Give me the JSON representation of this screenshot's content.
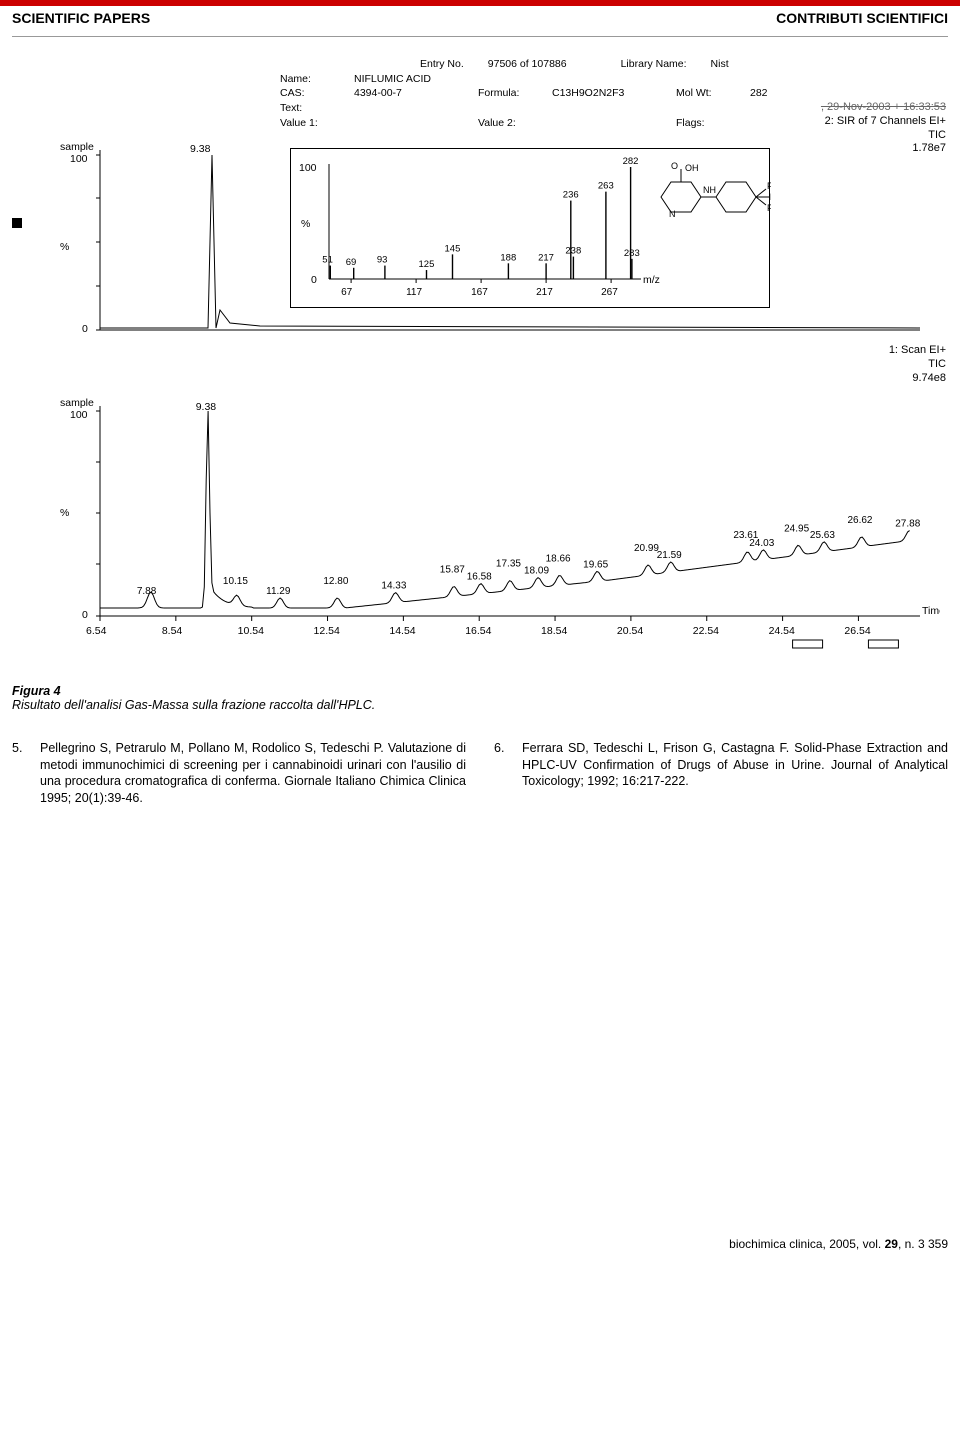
{
  "header": {
    "left": "SCIENTIFIC PAPERS",
    "right": "CONTRIBUTI SCIENTIFICI"
  },
  "figure": {
    "meta": {
      "entry_no_lbl": "Entry No.",
      "entry_no": "97506 of 107886",
      "library_name_lbl": "Library Name:",
      "library_name": "Nist",
      "name_lbl": "Name:",
      "name": "NIFLUMIC ACID",
      "cas_lbl": "CAS:",
      "cas": "4394-00-7",
      "formula_lbl": "Formula:",
      "formula": "C13H9O2N2F3",
      "molwt_lbl": "Mol Wt:",
      "molwt": "282",
      "text_lbl": "Text:",
      "value1_lbl": "Value 1:",
      "value2_lbl": "Value 2:",
      "flags_lbl": "Flags:"
    },
    "stamp": {
      "line1": ", 29-Nov-2003 + 16:33:53",
      "line2": "2: SIR of 7 Channels EI+",
      "line3": "TIC",
      "line4": "1.78e7"
    },
    "top_chart": {
      "y_label_left": "sample",
      "y_ticks": [
        100,
        0
      ],
      "y_mid_label": "%",
      "peak_label": "9.38",
      "peak_x": 0.14,
      "x_range": [
        6.54,
        27.88
      ],
      "second_stamp": {
        "line1": "1: Scan EI+",
        "line2": "TIC",
        "line3": "9.74e8"
      }
    },
    "inset": {
      "y_ticks": [
        100,
        0
      ],
      "y_mid_label": "%",
      "x_label": "m/z",
      "x_ticks": [
        67,
        117,
        167,
        217,
        267
      ],
      "peaks": [
        {
          "mz": 51,
          "h": 0.12,
          "lbl": "51"
        },
        {
          "mz": 69,
          "h": 0.1,
          "lbl": "69"
        },
        {
          "mz": 93,
          "h": 0.12,
          "lbl": "93"
        },
        {
          "mz": 125,
          "h": 0.08,
          "lbl": "125"
        },
        {
          "mz": 145,
          "h": 0.22,
          "lbl": "145"
        },
        {
          "mz": 188,
          "h": 0.14,
          "lbl": "188"
        },
        {
          "mz": 217,
          "h": 0.14,
          "lbl": "217"
        },
        {
          "mz": 236,
          "h": 0.7,
          "lbl": "236"
        },
        {
          "mz": 238,
          "h": 0.2,
          "lbl": "238"
        },
        {
          "mz": 263,
          "h": 0.78,
          "lbl": "263"
        },
        {
          "mz": 282,
          "h": 1.0,
          "lbl": "282"
        },
        {
          "mz": 283,
          "h": 0.18,
          "lbl": "283"
        }
      ],
      "structure_labels": [
        "O",
        "OH",
        "NH",
        "N",
        "F",
        "F",
        "F"
      ]
    },
    "bottom_chart": {
      "y_label_left": "sample",
      "y_ticks": [
        100,
        0
      ],
      "y_mid_label": "%",
      "x_label": "Time",
      "x_ticks": [
        6.54,
        8.54,
        10.54,
        12.54,
        14.54,
        16.54,
        18.54,
        20.54,
        22.54,
        24.54,
        26.54
      ],
      "main_peak": {
        "x": 9.38,
        "lbl": "9.38"
      },
      "minor_peaks": [
        {
          "x": 7.88,
          "lbl": "7.88"
        },
        {
          "x": 10.15,
          "lbl": "10.15"
        },
        {
          "x": 11.29,
          "lbl": "11.29"
        },
        {
          "x": 12.8,
          "lbl": "12.80"
        },
        {
          "x": 14.33,
          "lbl": "14.33"
        },
        {
          "x": 15.87,
          "lbl": "15.87"
        },
        {
          "x": 16.58,
          "lbl": "16.58"
        },
        {
          "x": 17.35,
          "lbl": "17.35"
        },
        {
          "x": 18.09,
          "lbl": "18.09"
        },
        {
          "x": 18.66,
          "lbl": "18.66"
        },
        {
          "x": 19.65,
          "lbl": "19.65"
        },
        {
          "x": 20.99,
          "lbl": "20.99"
        },
        {
          "x": 21.59,
          "lbl": "21.59"
        },
        {
          "x": 23.61,
          "lbl": "23.61"
        },
        {
          "x": 24.03,
          "lbl": "24.03"
        },
        {
          "x": 24.95,
          "lbl": "24.95"
        },
        {
          "x": 25.63,
          "lbl": "25.63"
        },
        {
          "x": 26.62,
          "lbl": "26.62"
        },
        {
          "x": 27.88,
          "lbl": "27.88"
        }
      ]
    },
    "caption_label": "Figura 4",
    "caption_text": "Risultato dell'analisi Gas-Massa sulla frazione raccolta dall'HPLC."
  },
  "references": {
    "left": [
      {
        "num": "5.",
        "text": "Pellegrino S, Petrarulo M, Pollano M, Rodolico S, Tedeschi P. Valutazione di metodi immunochimici di screening per i cannabinoidi urinari con l'ausilio di una procedura cromatografica di conferma. Giornale Italiano Chimica Clinica 1995; 20(1):39-46."
      }
    ],
    "right": [
      {
        "num": "6.",
        "text": "Ferrara SD, Tedeschi L, Frison G, Castagna F. Solid-Phase Extraction and HPLC-UV Confirmation of Drugs of Abuse in Urine. Journal of Analytical Toxicology; 1992; 16:217-222."
      }
    ]
  },
  "footer": {
    "journal": "biochimica clinica, 2005, vol. ",
    "vol": "29",
    "issue_page": ", n. 3     359"
  },
  "colors": {
    "red": "#cc0000",
    "black": "#000000",
    "gray": "#888888"
  }
}
